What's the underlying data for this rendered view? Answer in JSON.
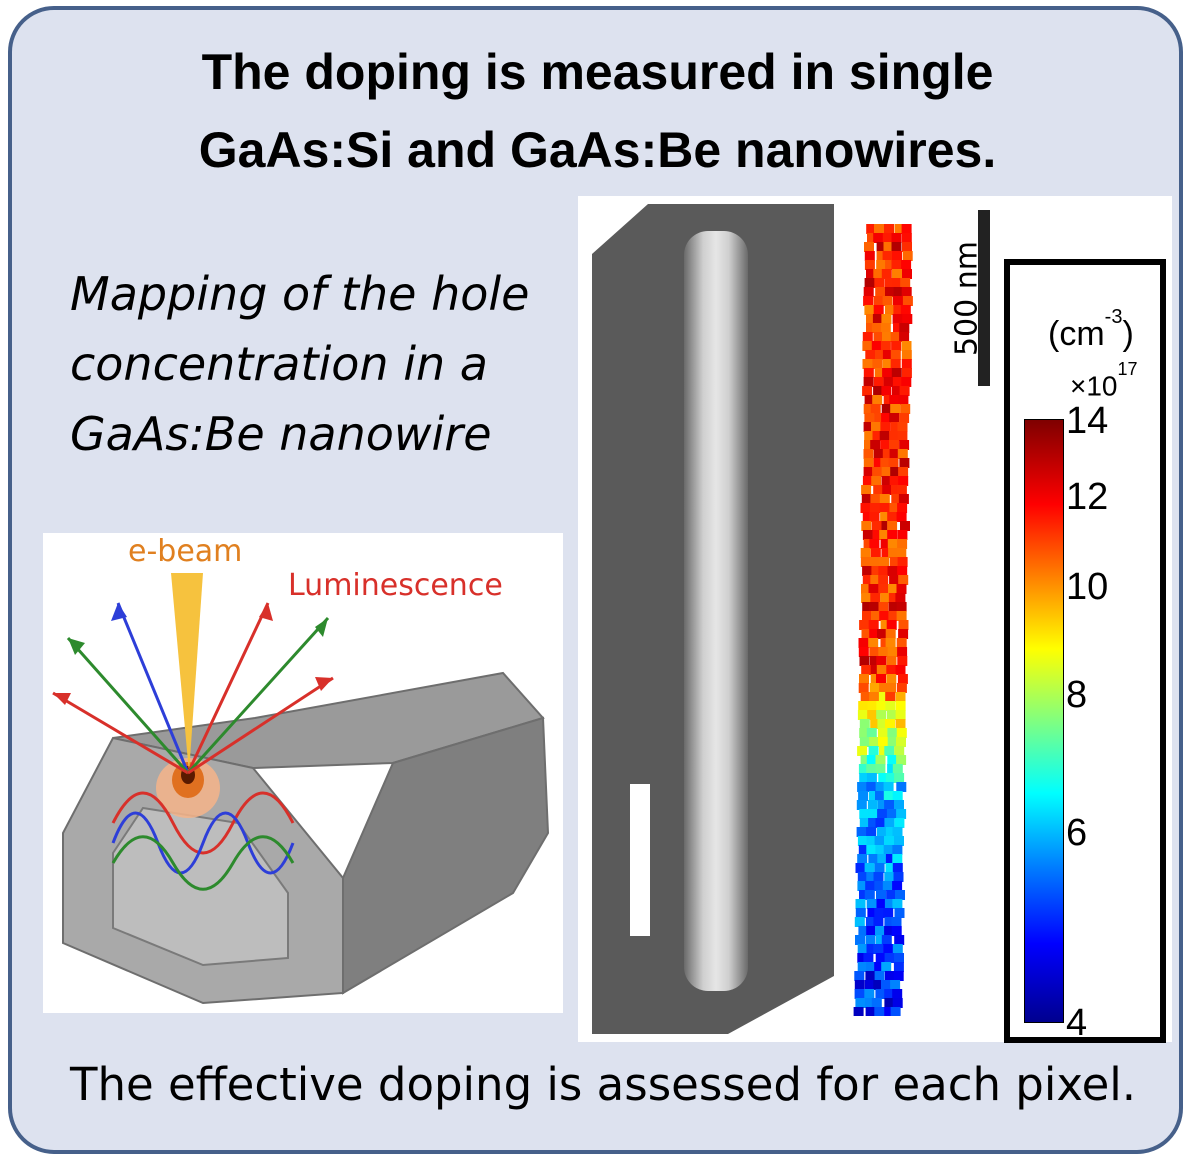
{
  "title": {
    "line1": "The doping is measured in single",
    "line2": "GaAs:Si and GaAs:Be nanowires."
  },
  "subtitle": {
    "line1": "Mapping of the hole",
    "line2": "concentration in a",
    "line3": "GaAs:Be nanowire"
  },
  "schematic": {
    "ebeam_label": "e-beam",
    "luminescence_label": "Luminescence"
  },
  "map": {
    "scalebar_label": "500 nm",
    "colorbar": {
      "unit": "(cm",
      "unit_exp": "-3",
      "unit_close": ")",
      "multiplier": "×10",
      "multiplier_exp": "17",
      "ticks": [
        "14",
        "12",
        "10",
        "8",
        "6",
        "4"
      ],
      "colormap": "jet"
    }
  },
  "footer": "The effective doping is assessed for each pixel.",
  "colors": {
    "card_bg": "#dde2ef",
    "card_border": "#46608a",
    "ebeam": "#f0a030",
    "luminescence": "#d8302a"
  }
}
